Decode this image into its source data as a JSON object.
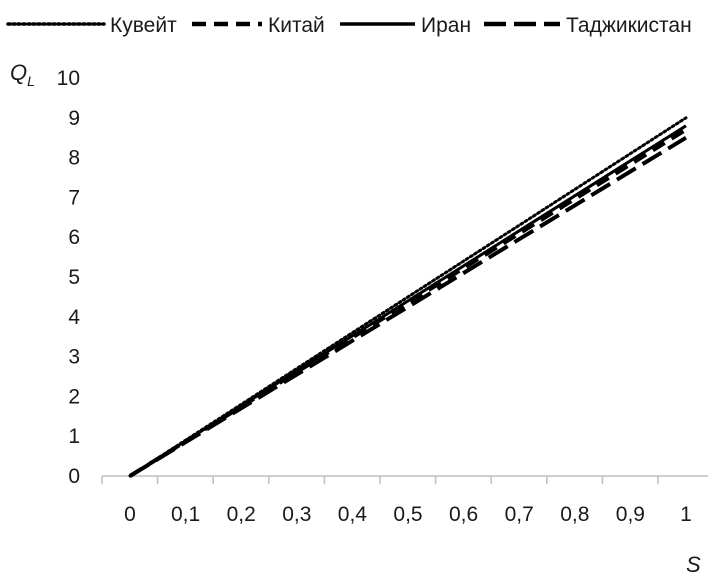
{
  "chart_data": {
    "type": "line",
    "xlabel": "S",
    "ylabel_main": "Q",
    "ylabel_sub": "L",
    "x": [
      0,
      0.1,
      0.2,
      0.3,
      0.4,
      0.5,
      0.6,
      0.7,
      0.8,
      0.9,
      1
    ],
    "x_tick_labels": [
      "0",
      "0,1",
      "0,2",
      "0,3",
      "0,4",
      "0,5",
      "0,6",
      "0,7",
      "0,8",
      "0,9",
      "1"
    ],
    "y_tick_labels": [
      "0",
      "1",
      "2",
      "3",
      "4",
      "5",
      "6",
      "7",
      "8",
      "9",
      "10"
    ],
    "ylim": [
      0,
      10
    ],
    "xlim": [
      0,
      1
    ],
    "grid": false,
    "legend_position": "top",
    "series": [
      {
        "name": "Кувейт",
        "style": "dotted",
        "values": [
          0,
          0.9,
          1.8,
          2.7,
          3.6,
          4.5,
          5.4,
          6.3,
          7.2,
          8.1,
          9.0
        ]
      },
      {
        "name": "Китай",
        "style": "dashed",
        "values": [
          0,
          0.87,
          1.74,
          2.61,
          3.48,
          4.35,
          5.22,
          6.09,
          6.96,
          7.83,
          8.7
        ]
      },
      {
        "name": "Иран",
        "style": "solid",
        "values": [
          0,
          0.88,
          1.76,
          2.64,
          3.52,
          4.4,
          5.28,
          6.16,
          7.04,
          7.92,
          8.8
        ]
      },
      {
        "name": "Таджикистан",
        "style": "longdash",
        "values": [
          0,
          0.85,
          1.7,
          2.55,
          3.4,
          4.25,
          5.1,
          5.95,
          6.8,
          7.65,
          8.5
        ]
      }
    ]
  },
  "colors": {
    "line": "#000000",
    "axis": "#bfbfbf",
    "text": "#1a1a1a"
  }
}
